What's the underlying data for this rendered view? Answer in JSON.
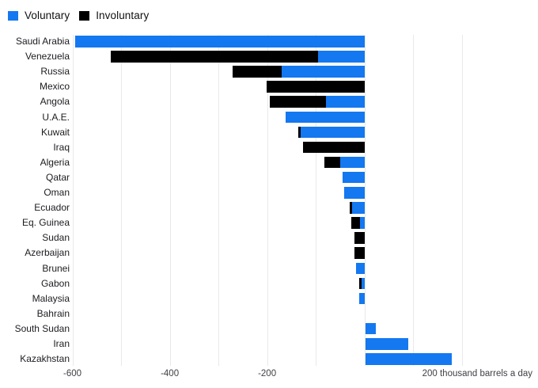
{
  "legend": {
    "items": [
      {
        "label": "Voluntary",
        "color": "#1478f0"
      },
      {
        "label": "Involuntary",
        "color": "#000000"
      }
    ]
  },
  "chart_data": {
    "type": "bar",
    "orientation": "horizontal",
    "stacked": true,
    "title": "",
    "xlabel": "thousand barrels a day",
    "ylabel": "",
    "xlim": [
      -640,
      340
    ],
    "grid": "vertical, every 100",
    "legend_position": "top-left",
    "categories": [
      "Saudi Arabia",
      "Venezuela",
      "Russia",
      "Mexico",
      "Angola",
      "U.A.E.",
      "Kuwait",
      "Iraq",
      "Algeria",
      "Qatar",
      "Oman",
      "Ecuador",
      "Eq. Guinea",
      "Sudan",
      "Azerbaijan",
      "Brunei",
      "Gabon",
      "Malaysia",
      "Bahrain",
      "South Sudan",
      "Iran",
      "Kazakhstan"
    ],
    "series": [
      {
        "name": "Voluntary",
        "color": "#1478f0",
        "values": [
          -595,
          -95,
          -170,
          0,
          -79,
          -162,
          -131,
          0,
          -50,
          -45,
          -42,
          -25,
          -9,
          0,
          0,
          -18,
          -6,
          -11,
          0,
          21,
          89,
          178
        ]
      },
      {
        "name": "Involuntary",
        "color": "#000000",
        "values": [
          0,
          -427,
          -101,
          -201,
          -115,
          0,
          -5,
          -127,
          -33,
          0,
          0,
          -5,
          -19,
          -20,
          -20,
          0,
          -5,
          0,
          0,
          0,
          0,
          0
        ]
      }
    ],
    "x_axis": {
      "ticks": [
        -600,
        -400,
        -200
      ],
      "tick_labels": [
        "-600",
        "-400",
        "-200"
      ],
      "unit_tick": 200,
      "unit_label": "200 thousand barrels a day"
    }
  }
}
